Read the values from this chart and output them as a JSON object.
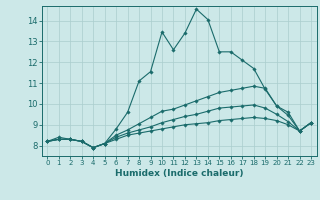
{
  "xlabel": "Humidex (Indice chaleur)",
  "bg_color": "#cce8e8",
  "line_color": "#1a6b6b",
  "grid_color": "#aacece",
  "xlim": [
    -0.5,
    23.5
  ],
  "ylim": [
    7.5,
    14.7
  ],
  "xticks": [
    0,
    1,
    2,
    3,
    4,
    5,
    6,
    7,
    8,
    9,
    10,
    11,
    12,
    13,
    14,
    15,
    16,
    17,
    18,
    19,
    20,
    21,
    22,
    23
  ],
  "yticks": [
    8,
    9,
    10,
    11,
    12,
    13,
    14
  ],
  "lines": [
    [
      8.2,
      8.4,
      8.3,
      8.2,
      7.9,
      8.1,
      8.8,
      9.6,
      11.1,
      11.55,
      13.45,
      12.6,
      13.4,
      14.55,
      14.05,
      12.5,
      12.5,
      12.1,
      11.7,
      10.7,
      9.9,
      9.6,
      8.7,
      9.1
    ],
    [
      8.2,
      8.3,
      8.3,
      8.2,
      7.9,
      8.1,
      8.5,
      8.75,
      9.05,
      9.35,
      9.65,
      9.75,
      9.95,
      10.15,
      10.35,
      10.55,
      10.65,
      10.75,
      10.85,
      10.75,
      9.9,
      9.45,
      8.7,
      9.1
    ],
    [
      8.2,
      8.3,
      8.3,
      8.2,
      7.9,
      8.1,
      8.4,
      8.6,
      8.75,
      8.9,
      9.1,
      9.25,
      9.4,
      9.5,
      9.65,
      9.8,
      9.85,
      9.9,
      9.95,
      9.8,
      9.5,
      9.15,
      8.7,
      9.1
    ],
    [
      8.2,
      8.3,
      8.3,
      8.2,
      7.9,
      8.1,
      8.3,
      8.5,
      8.6,
      8.7,
      8.8,
      8.9,
      9.0,
      9.05,
      9.1,
      9.2,
      9.25,
      9.3,
      9.35,
      9.3,
      9.2,
      9.0,
      8.7,
      9.1
    ]
  ]
}
